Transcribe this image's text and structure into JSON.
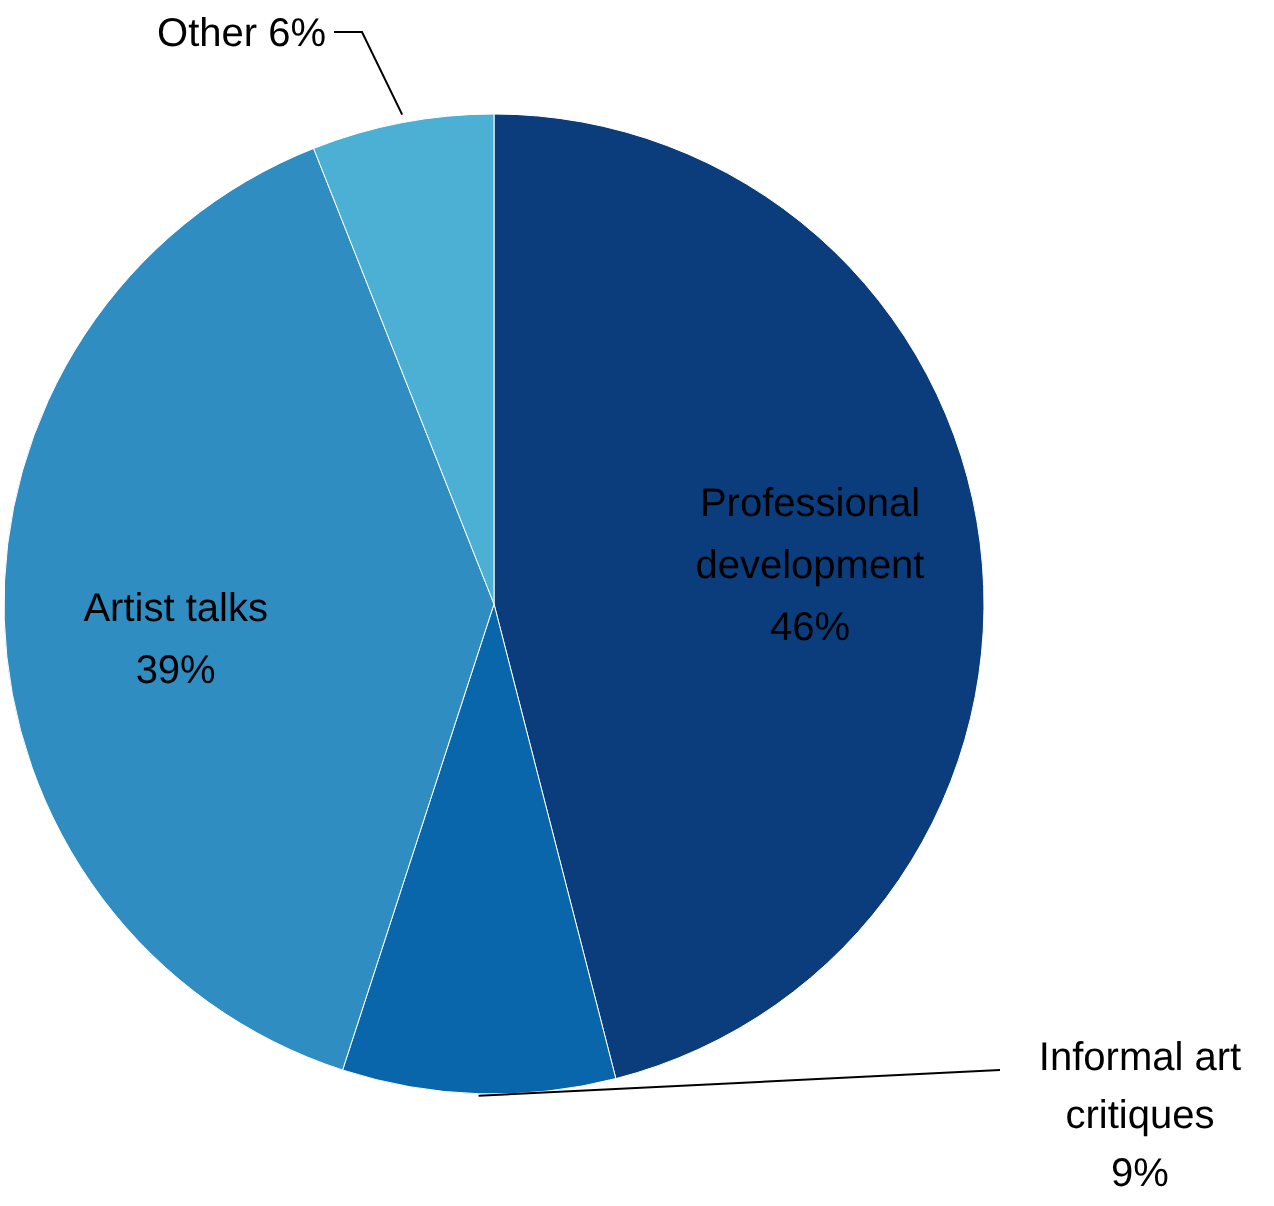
{
  "chart_data": {
    "type": "pie",
    "categories": [
      "Professional development",
      "Informal art critiques",
      "Artist talks",
      "Other"
    ],
    "values": [
      46,
      9,
      39,
      6
    ],
    "colors": [
      "#0b3d7c",
      "#0a66ab",
      "#2f8dc1",
      "#4cb0d4"
    ],
    "value_labels": [
      "46%",
      "9%",
      "39%",
      "6%"
    ]
  }
}
